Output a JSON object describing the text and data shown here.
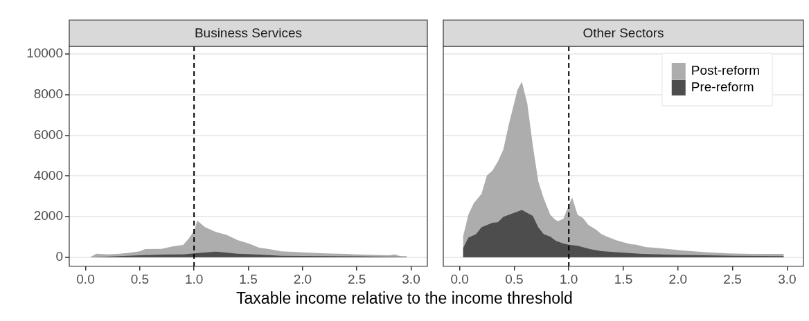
{
  "chart_data": [
    {
      "type": "area",
      "title": "Business Services",
      "xlabel": "Taxable income relative to the income threshold",
      "xlim": [
        -0.15,
        3.15
      ],
      "ylim": [
        -440,
        10370
      ],
      "xticks": [
        {
          "value": 0,
          "label": "0.0"
        },
        {
          "value": 0.5,
          "label": "0.5"
        },
        {
          "value": 1,
          "label": "1.0"
        },
        {
          "value": 1.5,
          "label": "1.5"
        },
        {
          "value": 2,
          "label": "2.0"
        },
        {
          "value": 2.5,
          "label": "2.5"
        },
        {
          "value": 3,
          "label": "3.0"
        }
      ],
      "yticks": [
        0,
        2000,
        4000,
        6000,
        8000,
        10000
      ],
      "grid": "y",
      "ref_lines": [
        {
          "axis": "x",
          "value": 1,
          "line_style": "dashed",
          "color": "#000000"
        }
      ],
      "series": [
        {
          "color": "#adadad",
          "x": [
            0.04,
            0.1,
            0.2,
            0.3,
            0.4,
            0.5,
            0.55,
            0.7,
            0.8,
            0.9,
            0.95,
            1.0,
            1.03,
            1.1,
            1.2,
            1.3,
            1.4,
            1.5,
            1.6,
            1.7,
            1.8,
            1.9,
            2.0,
            2.2,
            2.4,
            2.6,
            2.8,
            2.85,
            2.9,
            2.96
          ],
          "values": [
            0,
            180,
            150,
            170,
            220,
            300,
            410,
            420,
            540,
            610,
            920,
            1300,
            1800,
            1490,
            1250,
            1110,
            850,
            690,
            480,
            400,
            300,
            270,
            250,
            200,
            170,
            130,
            100,
            150,
            60,
            50
          ]
        },
        {
          "color": "#4d4d4d",
          "x": [
            0.04,
            0.2,
            0.5,
            0.7,
            0.9,
            1.0,
            1.2,
            1.4,
            1.6,
            1.8,
            2.0,
            2.5,
            2.96
          ],
          "values": [
            0,
            40,
            100,
            140,
            150,
            200,
            280,
            180,
            140,
            80,
            70,
            50,
            20
          ]
        }
      ]
    },
    {
      "type": "area",
      "title": "Other Sectors",
      "xlim": [
        -0.15,
        3.15
      ],
      "ylim": [
        -440,
        10370
      ],
      "tick_labels": "x",
      "legend": "top right",
      "xticks": [
        {
          "value": 0,
          "label": "0.0"
        },
        {
          "value": 0.5,
          "label": "0.5"
        },
        {
          "value": 1,
          "label": "1.0"
        },
        {
          "value": 1.5,
          "label": "1.5"
        },
        {
          "value": 2,
          "label": "2.0"
        },
        {
          "value": 2.5,
          "label": "2.5"
        },
        {
          "value": 3,
          "label": "3.0"
        }
      ],
      "yticks": [
        0,
        2000,
        4000,
        6000,
        8000,
        10000
      ],
      "grid": "y",
      "ref_lines": [
        {
          "axis": "x",
          "value": 1,
          "line_style": "dashed",
          "color": "#000000"
        }
      ],
      "series": [
        {
          "name": "Post-reform",
          "color": "#adadad",
          "x": [
            0.03,
            0.031,
            0.08,
            0.13,
            0.2,
            0.25,
            0.3,
            0.35,
            0.4,
            0.45,
            0.53,
            0.57,
            0.62,
            0.67,
            0.72,
            0.77,
            0.83,
            0.87,
            0.9,
            0.95,
            1.03,
            1.08,
            1.13,
            1.18,
            1.25,
            1.3,
            1.35,
            1.43,
            1.5,
            1.57,
            1.62,
            1.7,
            1.83,
            2.04,
            2.25,
            2.46,
            2.67,
            2.89,
            2.97
          ],
          "values": [
            0,
            1020,
            2100,
            2670,
            3120,
            4030,
            4260,
            4710,
            5300,
            6530,
            8240,
            8630,
            7550,
            5510,
            3750,
            2900,
            2100,
            1870,
            1780,
            1900,
            2950,
            2100,
            1930,
            1590,
            1360,
            1140,
            1020,
            850,
            740,
            650,
            620,
            510,
            450,
            340,
            260,
            200,
            170,
            170,
            170
          ]
        },
        {
          "name": "Pre-reform",
          "color": "#4d4d4d",
          "x": [
            0.03,
            0.031,
            0.08,
            0.15,
            0.2,
            0.3,
            0.35,
            0.4,
            0.57,
            0.67,
            0.72,
            0.77,
            0.83,
            0.88,
            0.95,
            1.0,
            1.08,
            1.2,
            1.3,
            1.5,
            1.67,
            2.0,
            2.5,
            2.97
          ],
          "values": [
            0,
            450,
            970,
            1140,
            1480,
            1700,
            1730,
            1990,
            2330,
            2040,
            1480,
            1140,
            1020,
            820,
            680,
            620,
            570,
            400,
            310,
            230,
            170,
            120,
            80,
            60
          ]
        }
      ]
    }
  ]
}
